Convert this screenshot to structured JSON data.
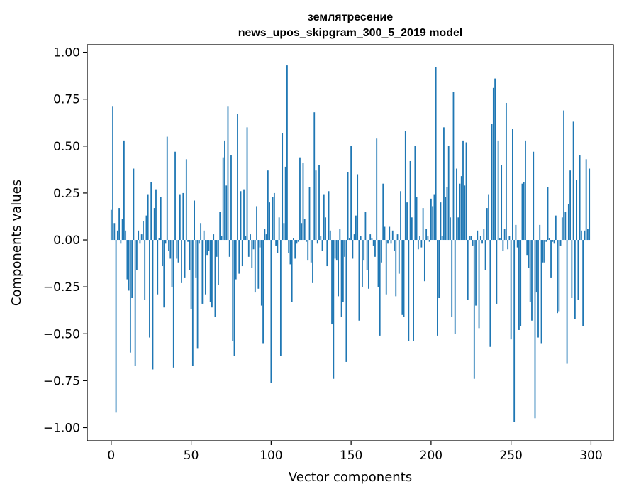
{
  "chart_data": {
    "type": "bar",
    "title": [
      "землятресение",
      "news_upos_skipgram_300_5_2019 model"
    ],
    "xlabel": "Vector components",
    "ylabel": "Components values",
    "xlim": [
      -15,
      314
    ],
    "ylim": [
      -1.07,
      1.04
    ],
    "xticks": [
      0,
      50,
      100,
      150,
      200,
      250,
      300
    ],
    "yticks": [
      -1.0,
      -0.75,
      -0.5,
      -0.25,
      0.0,
      0.25,
      0.5,
      0.75,
      1.0
    ],
    "ytick_labels": [
      "−1.00",
      "−0.75",
      "−0.50",
      "−0.25",
      "0.00",
      "0.25",
      "0.50",
      "0.75",
      "1.00"
    ],
    "grid": false,
    "bar_color": "#1f77b4",
    "x": [
      0,
      1,
      2,
      3,
      4,
      5,
      6,
      7,
      8,
      9,
      10,
      11,
      12,
      13,
      14,
      15,
      16,
      17,
      18,
      19,
      20,
      21,
      22,
      23,
      24,
      25,
      26,
      27,
      28,
      29,
      30,
      31,
      32,
      33,
      34,
      35,
      36,
      37,
      38,
      39,
      40,
      41,
      42,
      43,
      44,
      45,
      46,
      47,
      48,
      49,
      50,
      51,
      52,
      53,
      54,
      55,
      56,
      57,
      58,
      59,
      60,
      61,
      62,
      63,
      64,
      65,
      66,
      67,
      68,
      69,
      70,
      71,
      72,
      73,
      74,
      75,
      76,
      77,
      78,
      79,
      80,
      81,
      82,
      83,
      84,
      85,
      86,
      87,
      88,
      89,
      90,
      91,
      92,
      93,
      94,
      95,
      96,
      97,
      98,
      99,
      100,
      101,
      102,
      103,
      104,
      105,
      106,
      107,
      108,
      109,
      110,
      111,
      112,
      113,
      114,
      115,
      116,
      117,
      118,
      119,
      120,
      121,
      122,
      123,
      124,
      125,
      126,
      127,
      128,
      129,
      130,
      131,
      132,
      133,
      134,
      135,
      136,
      137,
      138,
      139,
      140,
      141,
      142,
      143,
      144,
      145,
      146,
      147,
      148,
      149,
      150,
      151,
      152,
      153,
      154,
      155,
      156,
      157,
      158,
      159,
      160,
      161,
      162,
      163,
      164,
      165,
      166,
      167,
      168,
      169,
      170,
      171,
      172,
      173,
      174,
      175,
      176,
      177,
      178,
      179,
      180,
      181,
      182,
      183,
      184,
      185,
      186,
      187,
      188,
      189,
      190,
      191,
      192,
      193,
      194,
      195,
      196,
      197,
      198,
      199,
      200,
      201,
      202,
      203,
      204,
      205,
      206,
      207,
      208,
      209,
      210,
      211,
      212,
      213,
      214,
      215,
      216,
      217,
      218,
      219,
      220,
      221,
      222,
      223,
      224,
      225,
      226,
      227,
      228,
      229,
      230,
      231,
      232,
      233,
      234,
      235,
      236,
      237,
      238,
      239,
      240,
      241,
      242,
      243,
      244,
      245,
      246,
      247,
      248,
      249,
      250,
      251,
      252,
      253,
      254,
      255,
      256,
      257,
      258,
      259,
      260,
      261,
      262,
      263,
      264,
      265,
      266,
      267,
      268,
      269,
      270,
      271,
      272,
      273,
      274,
      275,
      276,
      277,
      278,
      279,
      280,
      281,
      282,
      283,
      284,
      285,
      286,
      287,
      288,
      289,
      290,
      291,
      292,
      293,
      294,
      295,
      296,
      297,
      298,
      299
    ],
    "values": [
      0.16,
      0.71,
      0.09,
      -0.92,
      0.05,
      0.17,
      -0.02,
      0.11,
      0.53,
      0.05,
      -0.21,
      -0.27,
      -0.6,
      -0.31,
      0.38,
      -0.67,
      -0.16,
      0.05,
      -0.02,
      0.03,
      0.1,
      -0.32,
      0.13,
      0.24,
      -0.52,
      0.31,
      -0.69,
      0.17,
      0.27,
      -0.29,
      0.01,
      0.23,
      -0.14,
      -0.36,
      -0.02,
      0.55,
      -0.06,
      -0.1,
      -0.25,
      -0.68,
      0.47,
      -0.1,
      -0.12,
      0.24,
      -0.23,
      0.25,
      -0.2,
      0.43,
      -0.01,
      -0.16,
      -0.37,
      -0.67,
      0.21,
      -0.2,
      -0.58,
      -0.02,
      0.09,
      -0.34,
      0.05,
      -0.29,
      -0.08,
      -0.06,
      -0.33,
      -0.36,
      0.03,
      -0.41,
      -0.09,
      -0.24,
      0.15,
      0.02,
      0.44,
      0.53,
      0.29,
      0.71,
      -0.09,
      0.45,
      -0.54,
      -0.62,
      -0.21,
      0.67,
      -0.18,
      0.26,
      -0.14,
      0.27,
      0.02,
      0.6,
      -0.09,
      0.03,
      -0.15,
      -0.05,
      -0.28,
      0.18,
      -0.26,
      -0.04,
      -0.35,
      -0.55,
      0.06,
      0.03,
      0.37,
      0.2,
      -0.76,
      0.23,
      0.25,
      -0.03,
      -0.07,
      0.12,
      -0.62,
      0.57,
      0.09,
      0.39,
      0.93,
      -0.07,
      -0.13,
      -0.33,
      0.01,
      -0.1,
      -0.02,
      -0.01,
      0.44,
      0.09,
      0.41,
      0.11,
      -0.01,
      -0.11,
      0.28,
      -0.12,
      -0.23,
      0.68,
      0.37,
      -0.02,
      0.4,
      0.02,
      -0.06,
      0.24,
      0.12,
      -0.14,
      0.26,
      0.05,
      -0.45,
      -0.74,
      -0.1,
      -0.11,
      -0.3,
      0.06,
      -0.41,
      -0.33,
      -0.09,
      -0.65,
      0.36,
      0.01,
      0.5,
      -0.1,
      0.03,
      0.13,
      0.35,
      -0.43,
      0.02,
      -0.25,
      -0.11,
      0.15,
      -0.16,
      -0.26,
      0.03,
      0.01,
      -0.03,
      -0.09,
      0.54,
      -0.25,
      -0.51,
      -0.12,
      0.3,
      0.07,
      -0.29,
      -0.02,
      0.07,
      -0.02,
      0.05,
      -0.06,
      -0.3,
      0.03,
      -0.18,
      0.26,
      -0.4,
      -0.41,
      0.58,
      0.2,
      -0.54,
      0.42,
      0.12,
      -0.54,
      0.5,
      0.23,
      -0.05,
      0.02,
      -0.04,
      0.17,
      -0.22,
      0.06,
      0.02,
      -0.01,
      0.22,
      0.18,
      0.24,
      0.92,
      -0.51,
      -0.31,
      0.2,
      0.02,
      0.6,
      0.23,
      0.28,
      0.5,
      0.12,
      -0.41,
      0.79,
      -0.5,
      0.38,
      0.12,
      0.3,
      0.34,
      0.53,
      0.29,
      0.52,
      -0.32,
      0.02,
      0.02,
      -0.03,
      -0.74,
      -0.35,
      0.05,
      -0.47,
      0.02,
      -0.02,
      0.06,
      -0.16,
      0.17,
      0.24,
      -0.57,
      0.62,
      0.81,
      0.86,
      -0.34,
      0.53,
      0.01,
      0.4,
      -0.06,
      0.06,
      0.73,
      -0.05,
      0.02,
      -0.53,
      0.59,
      -0.97,
      0.08,
      -0.04,
      -0.48,
      -0.46,
      0.3,
      0.31,
      0.53,
      -0.08,
      -0.15,
      -0.33,
      -0.43,
      0.47,
      -0.95,
      -0.28,
      -0.52,
      0.08,
      -0.55,
      -0.12,
      -0.12,
      -0.01,
      0.28,
      0.01,
      -0.2,
      -0.01,
      -0.02,
      0.13,
      -0.39,
      -0.38,
      -0.03,
      0.12,
      0.69,
      0.15,
      -0.66,
      0.19,
      0.37,
      -0.31,
      0.63,
      -0.42,
      0.32,
      -0.32,
      0.45,
      0.05,
      -0.46,
      0.05,
      0.43,
      0.06,
      0.38
    ]
  }
}
